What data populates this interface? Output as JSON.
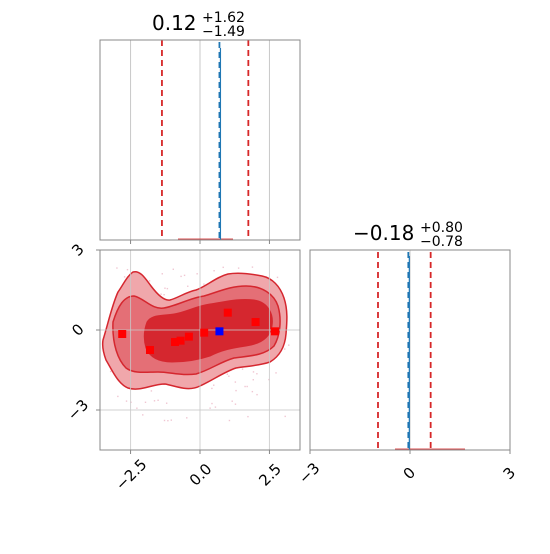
{
  "chart_data": [
    {
      "type": "histogram",
      "panel": "top-left marginal (x)",
      "title": {
        "value": "0.12",
        "upper": "+1.62",
        "lower": "−1.49"
      },
      "xlim": [
        -3.6,
        3.6
      ],
      "median": 0.12,
      "lower_q": -1.37,
      "upper_q": 1.74,
      "truth": 0.7,
      "x_ticks": [
        -2.5,
        0.0,
        2.5
      ],
      "grid": true
    },
    {
      "type": "contour",
      "panel": "bottom-left joint",
      "xlim": [
        -3.6,
        3.6
      ],
      "ylim": [
        -4.5,
        3.0
      ],
      "x_ticks": [
        -2.5,
        0.0,
        2.5
      ],
      "x_tick_labels": [
        "−2.5",
        "0.0",
        "2.5"
      ],
      "y_ticks": [
        3,
        0,
        -3
      ],
      "y_tick_labels": [
        "3",
        "0",
        "−3"
      ],
      "grid": true,
      "contour_levels": [
        {
          "fill": "#f0a7ab",
          "outer": true
        },
        {
          "fill": "#e46f76"
        },
        {
          "fill": "#d5272f"
        }
      ],
      "red_points": [
        {
          "x": -2.8,
          "y": -0.15
        },
        {
          "x": -1.8,
          "y": -0.75
        },
        {
          "x": -0.9,
          "y": -0.45
        },
        {
          "x": -0.7,
          "y": -0.4
        },
        {
          "x": -0.4,
          "y": -0.25
        },
        {
          "x": 0.15,
          "y": -0.1
        },
        {
          "x": 1.0,
          "y": 0.65
        },
        {
          "x": 2.0,
          "y": 0.3
        },
        {
          "x": 2.7,
          "y": -0.05
        }
      ],
      "blue_point": {
        "x": 0.7,
        "y": -0.05
      }
    },
    {
      "type": "histogram",
      "panel": "bottom-right marginal (y)",
      "title": {
        "value": "−0.18",
        "upper": "+0.80",
        "lower": "−0.78"
      },
      "xlim": [
        -3.0,
        3.0
      ],
      "median": -0.18,
      "lower_q": -0.96,
      "upper_q": 0.62,
      "truth": -0.05,
      "x_ticks": [
        -3,
        0,
        3
      ],
      "x_tick_labels": [
        "−3",
        "0",
        "3"
      ],
      "grid": true
    }
  ],
  "colors": {
    "axis": "#888888",
    "grid": "#c8c8c8",
    "quantile_line": "#d62728",
    "truth_line": "#1f77b4",
    "point_red": "#ff0000",
    "point_blue": "#0000ff"
  }
}
